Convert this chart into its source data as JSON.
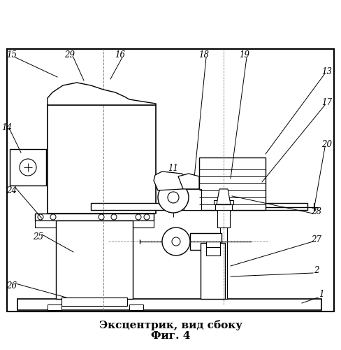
{
  "title_line1": "Эксцентрик, вид сбоку",
  "title_line2": "Фиг. 4",
  "bg_color": "#ffffff"
}
